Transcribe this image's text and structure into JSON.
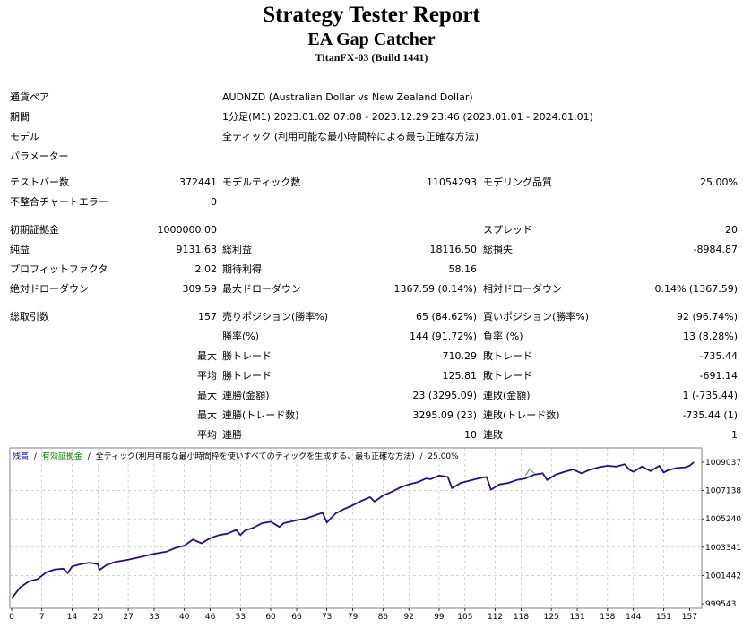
{
  "header": {
    "title": "Strategy Tester Report",
    "ea_name": "EA Gap Catcher",
    "server": "TitanFX-03 (Build 1441)"
  },
  "info": {
    "symbol_label": "通貨ペア",
    "symbol_value": "AUDNZD (Australian Dollar vs New Zealand Dollar)",
    "period_label": "期間",
    "period_value": "1分足(M1) 2023.01.02 07:08 - 2023.12.29 23:46 (2023.01.01 - 2024.01.01)",
    "model_label": "モデル",
    "model_value": "全ティック (利用可能な最小時間枠による最も正確な方法)",
    "params_label": "パラメーター"
  },
  "stats": {
    "bars_label": "テストバー数",
    "bars_value": "372441",
    "ticks_label": "モデルティック数",
    "ticks_value": "11054293",
    "quality_label": "モデリング品質",
    "quality_value": "25.00%",
    "mismatch_label": "不整合チャートエラー",
    "mismatch_value": "0",
    "deposit_label": "初期証拠金",
    "deposit_value": "1000000.00",
    "spread_label": "スプレッド",
    "spread_value": "20",
    "net_label": "純益",
    "net_value": "9131.63",
    "gross_profit_label": "総利益",
    "gross_profit_value": "18116.50",
    "gross_loss_label": "総損失",
    "gross_loss_value": "-8984.87",
    "pf_label": "プロフィットファクタ",
    "pf_value": "2.02",
    "expected_label": "期待利得",
    "expected_value": "58.16",
    "abs_dd_label": "絶対ドローダウン",
    "abs_dd_value": "309.59",
    "max_dd_label": "最大ドローダウン",
    "max_dd_value": "1367.59 (0.14%)",
    "rel_dd_label": "相対ドローダウン",
    "rel_dd_value": "0.14% (1367.59)",
    "trades_label": "総取引数",
    "trades_value": "157",
    "short_label": "売りポジション(勝率%)",
    "short_value": "65 (84.62%)",
    "long_label": "買いポジション(勝率%)",
    "long_value": "92 (96.74%)",
    "win_rate_label": "勝率(%)",
    "win_rate_value": "144 (91.72%)",
    "loss_rate_label": "負率 (%)",
    "loss_rate_value": "13 (8.28%)",
    "largest_prefix": "最大",
    "largest_win_label": "勝トレード",
    "largest_win_value": "710.29",
    "largest_loss_label": "敗トレード",
    "largest_loss_value": "-735.44",
    "avg_prefix": "平均",
    "avg_win_label": "勝トレード",
    "avg_win_value": "125.81",
    "avg_loss_label": "敗トレード",
    "avg_loss_value": "-691.14",
    "max_prefix": "最大",
    "max_consec_wins_label": "連勝(金額)",
    "max_consec_wins_value": "23 (3295.09)",
    "max_consec_losses_label": "連敗(金額)",
    "max_consec_losses_value": "1 (-735.44)",
    "max_prefix2": "最大",
    "max_consec_profit_label": "連勝(トレード数)",
    "max_consec_profit_value": "3295.09 (23)",
    "max_consec_loss_label": "連敗(トレード数)",
    "max_consec_loss_value": "-735.44 (1)",
    "avg_prefix2": "平均",
    "avg_consec_wins_label": "連勝",
    "avg_consec_wins_value": "10",
    "avg_consec_losses_label": "連敗",
    "avg_consec_losses_value": "1"
  },
  "chart_legend": {
    "balance": "残高",
    "sep1": "/",
    "equity": "有効証拠金",
    "sep2": "/",
    "model": "全ティック(利用可能な最小時間枠を使いすべてのティックを生成する、最も正確な方法)",
    "sep3": "/",
    "quality": "25.00%"
  },
  "colors": {
    "balance": "#2c0a8c",
    "equity": "#1fa03c",
    "legend_balance": "#0000cc",
    "legend_equity": "#008000",
    "grid": "#b8b8b8",
    "border": "#808080"
  },
  "chart_data": {
    "type": "line",
    "title": "",
    "xlabel": "",
    "ylabel": "",
    "x_ticks": [
      "0",
      "7",
      "14",
      "20",
      "27",
      "33",
      "40",
      "46",
      "53",
      "60",
      "66",
      "73",
      "79",
      "86",
      "92",
      "99",
      "105",
      "112",
      "118",
      "125",
      "131",
      "138",
      "144",
      "151",
      "157"
    ],
    "y_ticks": [
      "1009037",
      "1007138",
      "1005240",
      "1003341",
      "1001442",
      "999543"
    ],
    "ylim": [
      999543,
      1009037
    ],
    "xlim": [
      0,
      159
    ],
    "grid": true,
    "series": [
      {
        "name": "残高",
        "x": [
          0,
          2,
          4,
          6,
          8,
          10,
          12,
          13,
          14,
          16,
          18,
          20,
          20.3,
          22,
          24,
          27,
          30,
          33,
          36,
          38,
          40,
          42,
          44,
          46,
          48,
          50,
          52,
          53,
          54,
          56,
          58,
          60,
          62,
          63,
          66,
          68,
          70,
          72,
          73,
          75,
          77,
          79,
          81,
          83,
          84,
          86,
          88,
          90,
          92,
          94,
          96,
          97,
          99,
          101,
          102,
          104,
          106,
          108,
          110,
          111,
          113,
          115,
          117,
          119,
          121,
          123,
          124,
          126,
          128,
          130,
          132,
          134,
          136,
          138,
          140,
          142,
          143,
          144,
          146,
          148,
          150,
          151,
          152,
          154,
          156,
          157,
          158
        ],
        "y": [
          999900,
          1000650,
          1001050,
          1001200,
          1001650,
          1001850,
          1001900,
          1001600,
          1002050,
          1002200,
          1002300,
          1002200,
          1001800,
          1002150,
          1002350,
          1002500,
          1002700,
          1002900,
          1003050,
          1003300,
          1003450,
          1003850,
          1003600,
          1003950,
          1004150,
          1004250,
          1004500,
          1004150,
          1004450,
          1004650,
          1004950,
          1005050,
          1004700,
          1004950,
          1005150,
          1005250,
          1005450,
          1005650,
          1005000,
          1005600,
          1005900,
          1006150,
          1006450,
          1006700,
          1006400,
          1006800,
          1007050,
          1007350,
          1007550,
          1007700,
          1007950,
          1007900,
          1008150,
          1008050,
          1007300,
          1007650,
          1007800,
          1007950,
          1008050,
          1007200,
          1007550,
          1007650,
          1007850,
          1007950,
          1008200,
          1008300,
          1007850,
          1008200,
          1008400,
          1008550,
          1008300,
          1008550,
          1008700,
          1008800,
          1008750,
          1008900,
          1008550,
          1008400,
          1008750,
          1008450,
          1008800,
          1008350,
          1008500,
          1008650,
          1008700,
          1008800,
          1009037
        ]
      },
      {
        "name": "有効証拠金",
        "x": [
          119,
          120,
          121
        ],
        "y": [
          1008150,
          1008600,
          1008300
        ]
      }
    ]
  }
}
